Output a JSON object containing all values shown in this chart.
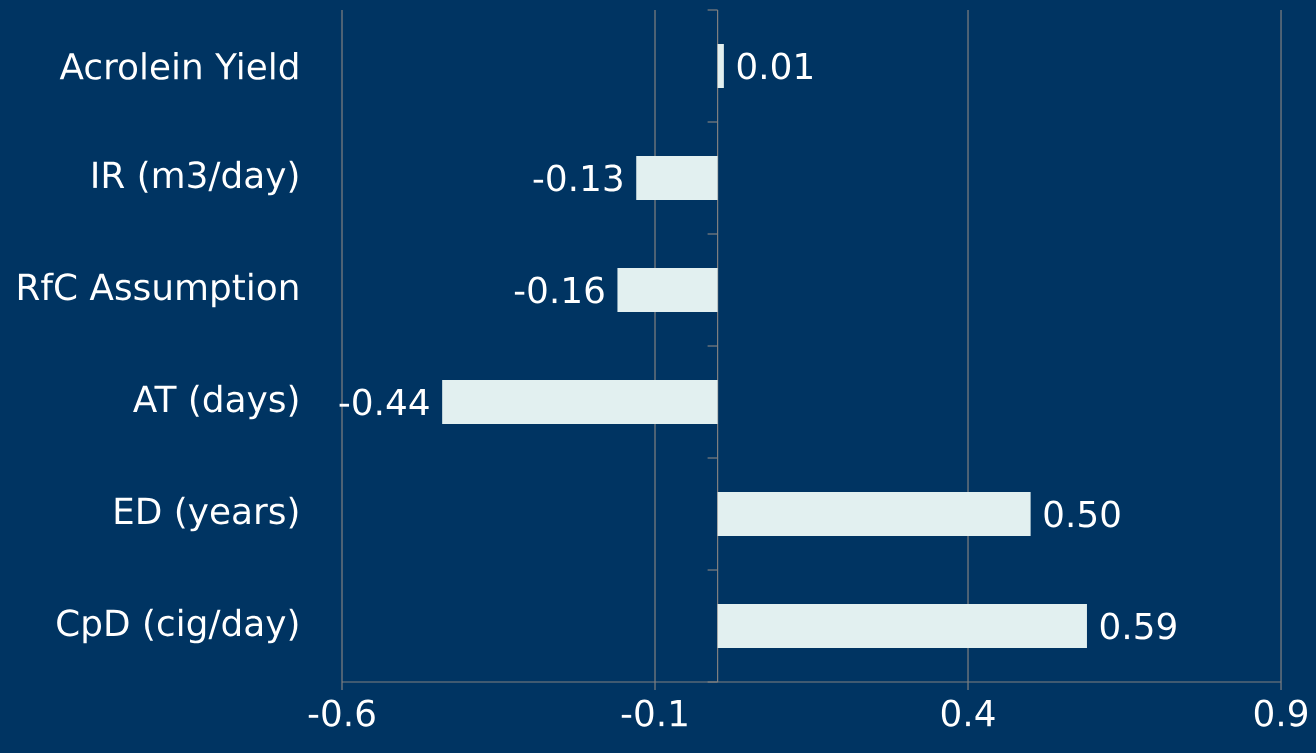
{
  "chart_data": {
    "type": "bar",
    "orientation": "horizontal",
    "categories": [
      "Acrolein Yield",
      "IR (m3/day)",
      "RfC Assumption",
      "AT (days)",
      "ED (years)",
      "CpD (cig/day)"
    ],
    "values": [
      0.01,
      -0.13,
      -0.16,
      -0.44,
      0.5,
      0.59
    ],
    "value_labels": [
      "0.01",
      "-0.13",
      "-0.16",
      "-0.44",
      "0.50",
      "0.59"
    ],
    "color": "#e2f0f0",
    "xlim": [
      -0.6,
      0.9
    ],
    "xticks": [
      -0.6,
      -0.1,
      0.4,
      0.9
    ],
    "grid": "x"
  }
}
